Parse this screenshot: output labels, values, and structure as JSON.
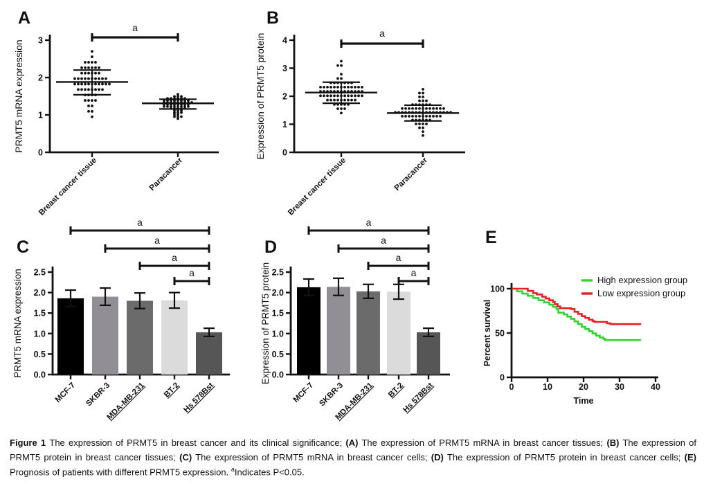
{
  "figure": {
    "background": "#ffffff",
    "caption": {
      "segments": [
        {
          "text": "Figure 1 ",
          "bold": true
        },
        {
          "text": "The expression of PRMT5 in breast cancer and its clinical significance; "
        },
        {
          "text": "(A)",
          "bold": true
        },
        {
          "text": " The expression of PRMT5 mRNA in breast cancer tissues; "
        },
        {
          "text": "(B)",
          "bold": true
        },
        {
          "text": " The expression of PRMT5 protein in breast cancer tissues; "
        },
        {
          "text": "(C)",
          "bold": true
        },
        {
          "text": " The expression of PRMT5 mRNA in breast cancer cells; "
        },
        {
          "text": "(D)",
          "bold": true
        },
        {
          "text": " The expression of PRMT5 protein in breast cancer cells; "
        },
        {
          "text": "(E)",
          "bold": true
        },
        {
          "text": " Prognosis of patients with different PRMT5 expression. "
        },
        {
          "text": "a",
          "sup": true
        },
        {
          "text": "Indicates P<0.05."
        }
      ]
    }
  },
  "chart_data": [
    {
      "id": "A",
      "type": "scatter",
      "panel_label": "A",
      "ylabel": "PRMT5 mRNA expression",
      "ylim": [
        0,
        3
      ],
      "yticks": [
        "0",
        "1",
        "2",
        "3"
      ],
      "categories": [
        "Breast cancer tissue",
        "Paracancer"
      ],
      "significance": [
        {
          "from": 0,
          "to": 1,
          "label": "a"
        }
      ],
      "groups": [
        {
          "name": "Breast cancer tissue",
          "mean": 1.88,
          "sd_high": 2.2,
          "sd_low": 1.54,
          "values": [
            2.7,
            2.55,
            2.48,
            2.42,
            2.38,
            2.35,
            2.3,
            2.3,
            2.25,
            2.25,
            2.2,
            2.2,
            2.18,
            2.15,
            2.12,
            2.1,
            2.08,
            2.05,
            2.02,
            2.0,
            2.0,
            1.98,
            1.95,
            1.95,
            1.92,
            1.9,
            1.9,
            1.9,
            1.88,
            1.88,
            1.88,
            1.85,
            1.85,
            1.85,
            1.82,
            1.82,
            1.8,
            1.8,
            1.78,
            1.75,
            1.75,
            1.72,
            1.7,
            1.7,
            1.68,
            1.65,
            1.62,
            1.6,
            1.58,
            1.55,
            1.5,
            1.45,
            1.42,
            1.38,
            1.32,
            1.28,
            1.22,
            1.12,
            1.05,
            0.95
          ]
        },
        {
          "name": "Paracancer",
          "mean": 1.31,
          "sd_high": 1.42,
          "sd_low": 1.16,
          "values": [
            1.55,
            1.52,
            1.5,
            1.48,
            1.46,
            1.45,
            1.44,
            1.43,
            1.42,
            1.42,
            1.41,
            1.4,
            1.4,
            1.4,
            1.39,
            1.38,
            1.38,
            1.37,
            1.36,
            1.35,
            1.35,
            1.34,
            1.33,
            1.33,
            1.32,
            1.32,
            1.31,
            1.3,
            1.3,
            1.3,
            1.29,
            1.28,
            1.28,
            1.27,
            1.26,
            1.25,
            1.25,
            1.24,
            1.23,
            1.22,
            1.21,
            1.2,
            1.2,
            1.19,
            1.18,
            1.17,
            1.16,
            1.15,
            1.13,
            1.12,
            1.1,
            1.08,
            1.06,
            1.04,
            1.02,
            1.0,
            0.98,
            0.96,
            0.93,
            0.9
          ]
        }
      ]
    },
    {
      "id": "B",
      "type": "scatter",
      "panel_label": "B",
      "ylabel": "Expression of PRMT5 protein",
      "ylim": [
        0,
        4
      ],
      "yticks": [
        "0",
        "1",
        "2",
        "3",
        "4"
      ],
      "categories": [
        "Breast cancer tissue",
        "Paracancer"
      ],
      "significance": [
        {
          "from": 0,
          "to": 1,
          "label": "a"
        }
      ],
      "groups": [
        {
          "name": "Breast cancer tissue",
          "mean": 2.13,
          "sd_high": 2.5,
          "sd_low": 1.75,
          "values": [
            3.25,
            3.1,
            3.05,
            2.75,
            2.65,
            2.6,
            2.55,
            2.52,
            2.5,
            2.48,
            2.45,
            2.45,
            2.42,
            2.4,
            2.4,
            2.38,
            2.35,
            2.35,
            2.32,
            2.3,
            2.3,
            2.3,
            2.28,
            2.25,
            2.25,
            2.25,
            2.22,
            2.2,
            2.2,
            2.2,
            2.18,
            2.15,
            2.15,
            2.15,
            2.12,
            2.12,
            2.1,
            2.1,
            2.1,
            2.08,
            2.08,
            2.05,
            2.05,
            2.05,
            2.02,
            2.02,
            2.0,
            2.0,
            2.0,
            1.98,
            1.95,
            1.95,
            1.92,
            1.9,
            1.9,
            1.88,
            1.85,
            1.85,
            1.82,
            1.8,
            1.8,
            1.78,
            1.75,
            1.72,
            1.7,
            1.65,
            1.6,
            1.55,
            1.48,
            1.4
          ]
        },
        {
          "name": "Paracancer",
          "mean": 1.4,
          "sd_high": 1.68,
          "sd_low": 1.12,
          "values": [
            2.25,
            2.15,
            2.1,
            2.0,
            1.95,
            1.85,
            1.8,
            1.78,
            1.75,
            1.72,
            1.7,
            1.68,
            1.66,
            1.65,
            1.63,
            1.62,
            1.6,
            1.6,
            1.58,
            1.57,
            1.55,
            1.55,
            1.53,
            1.52,
            1.5,
            1.5,
            1.5,
            1.48,
            1.48,
            1.46,
            1.45,
            1.45,
            1.44,
            1.43,
            1.42,
            1.42,
            1.41,
            1.4,
            1.4,
            1.4,
            1.38,
            1.38,
            1.37,
            1.36,
            1.35,
            1.35,
            1.33,
            1.32,
            1.31,
            1.3,
            1.3,
            1.28,
            1.27,
            1.25,
            1.24,
            1.22,
            1.2,
            1.19,
            1.17,
            1.15,
            1.13,
            1.11,
            1.08,
            1.05,
            1.0,
            0.95,
            0.9,
            0.82,
            0.72,
            0.6
          ]
        }
      ]
    },
    {
      "id": "C",
      "type": "bar",
      "panel_label": "C",
      "ylabel": "PRMT5 mRNA expression",
      "ylim": [
        0,
        2.5
      ],
      "yticks": [
        "0.0",
        "0.5",
        "1.0",
        "1.5",
        "2.0",
        "2.5"
      ],
      "categories": [
        "MCF-7",
        "SKBR-3",
        "MDA-MB-231",
        "BT-2",
        "Hs 578Bst"
      ],
      "underline": [
        false,
        false,
        true,
        true,
        true
      ],
      "values": [
        1.86,
        1.9,
        1.8,
        1.81,
        1.03
      ],
      "errors": [
        0.2,
        0.21,
        0.19,
        0.19,
        0.1
      ],
      "bar_colors": [
        "#000000",
        "#928e96",
        "#6b6b6b",
        "#dbdbdb",
        "#565656"
      ],
      "significance": [
        {
          "from": 0,
          "to": 4,
          "label": "a"
        },
        {
          "from": 1,
          "to": 4,
          "label": "a"
        },
        {
          "from": 2,
          "to": 4,
          "label": "a"
        },
        {
          "from": 3,
          "to": 4,
          "label": "a"
        }
      ]
    },
    {
      "id": "D",
      "type": "bar",
      "panel_label": "D",
      "ylabel": "Expression of PRMT5 protein",
      "ylim": [
        0,
        2.5
      ],
      "yticks": [
        "0.0",
        "0.5",
        "1.0",
        "1.5",
        "2.0",
        "2.5"
      ],
      "categories": [
        "MCF-7",
        "SKBR-3",
        "MDA-MB-231",
        "BT-2",
        "Hs 578Bst"
      ],
      "underline": [
        false,
        false,
        true,
        true,
        true
      ],
      "values": [
        2.13,
        2.14,
        2.03,
        2.02,
        1.03
      ],
      "errors": [
        0.2,
        0.21,
        0.17,
        0.18,
        0.1
      ],
      "bar_colors": [
        "#000000",
        "#928e96",
        "#6b6b6b",
        "#dbdbdb",
        "#565656"
      ],
      "significance": [
        {
          "from": 0,
          "to": 4,
          "label": "a"
        },
        {
          "from": 1,
          "to": 4,
          "label": "a"
        },
        {
          "from": 2,
          "to": 4,
          "label": "a"
        },
        {
          "from": 3,
          "to": 4,
          "label": "a"
        }
      ]
    },
    {
      "id": "E",
      "type": "line",
      "panel_label": "E",
      "xlabel": "Time",
      "ylabel": "Percent survival",
      "xlim": [
        0,
        40
      ],
      "ylim": [
        0,
        100
      ],
      "xticks": [
        "0",
        "10",
        "20",
        "30",
        "40"
      ],
      "yticks": [
        "0",
        "50",
        "100"
      ],
      "legend_position": "top-right",
      "series": [
        {
          "name": "High expression group",
          "color": "#2ed32e",
          "points": [
            [
              0,
              100
            ],
            [
              1.5,
              97
            ],
            [
              3,
              94.5
            ],
            [
              4.5,
              92
            ],
            [
              6,
              89.5
            ],
            [
              7.5,
              87
            ],
            [
              9,
              84.5
            ],
            [
              10.5,
              82
            ],
            [
              11.5,
              79.5
            ],
            [
              12.5,
              77
            ],
            [
              13,
              73
            ],
            [
              14.5,
              71
            ],
            [
              15.5,
              68.5
            ],
            [
              16.5,
              66
            ],
            [
              17.5,
              63
            ],
            [
              18.5,
              60
            ],
            [
              19.5,
              57
            ],
            [
              20.5,
              54.5
            ],
            [
              21.5,
              52
            ],
            [
              22.5,
              49.5
            ],
            [
              23.5,
              47
            ],
            [
              24.5,
              45
            ],
            [
              25.5,
              43.5
            ],
            [
              26,
              42
            ],
            [
              36,
              42
            ]
          ]
        },
        {
          "name": "Low expression group",
          "color": "#e81e1e",
          "points": [
            [
              0,
              100
            ],
            [
              4.5,
              97.5
            ],
            [
              6,
              95
            ],
            [
              7,
              93.5
            ],
            [
              8.5,
              91
            ],
            [
              9.5,
              89
            ],
            [
              10.5,
              87
            ],
            [
              11.5,
              85
            ],
            [
              12,
              82.5
            ],
            [
              12.8,
              80
            ],
            [
              13.5,
              78
            ],
            [
              16.5,
              77
            ],
            [
              17.5,
              74
            ],
            [
              18.5,
              71.5
            ],
            [
              19.5,
              69
            ],
            [
              20.5,
              67
            ],
            [
              21.5,
              65
            ],
            [
              22.5,
              63.5
            ],
            [
              23,
              62.5
            ],
            [
              26.5,
              61
            ],
            [
              27.5,
              60
            ],
            [
              36,
              60
            ]
          ]
        }
      ]
    }
  ]
}
